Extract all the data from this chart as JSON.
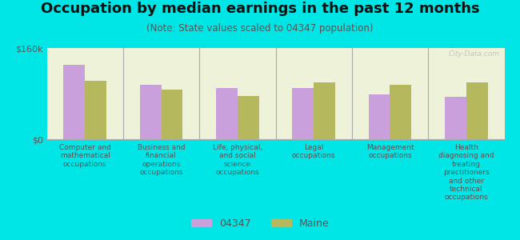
{
  "title": "Occupation by median earnings in the past 12 months",
  "subtitle": "(Note: State values scaled to 04347 population)",
  "background_color": "#00e5e5",
  "plot_bg_color": "#eef2d8",
  "categories": [
    "Computer and\nmathematical\noccupations",
    "Business and\nfinancial\noperations\noccupations",
    "Life, physical,\nand social\nscience\noccupations",
    "Legal\noccupations",
    "Management\noccupations",
    "Health\ndiagnosing and\ntreating\npractitioners\nand other\ntechnical\noccupations"
  ],
  "values_04347": [
    130000,
    95000,
    90000,
    90000,
    78000,
    75000
  ],
  "values_maine": [
    103000,
    87000,
    76000,
    100000,
    95000,
    100000
  ],
  "color_04347": "#c9a0dc",
  "color_maine": "#b5b85c",
  "ylim": [
    0,
    160000
  ],
  "yticks": [
    0,
    160000
  ],
  "ytick_labels": [
    "$0",
    "$160k"
  ],
  "legend_labels": [
    "04347",
    "Maine"
  ],
  "watermark": "City-Data.com",
  "title_fontsize": 13,
  "subtitle_fontsize": 8.5,
  "tick_label_fontsize": 8,
  "axis_label_color": "#555555",
  "bar_width": 0.28
}
